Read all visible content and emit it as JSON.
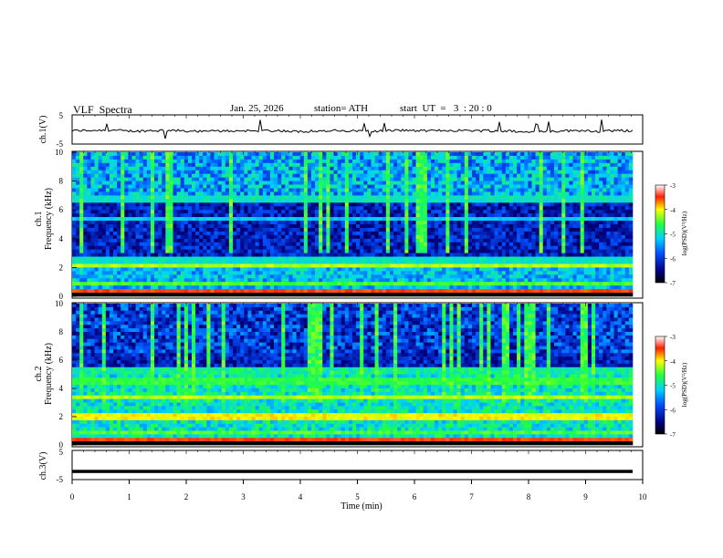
{
  "header": {
    "title": "VLF  Spectra",
    "date": "Jan. 25, 2026",
    "station": "station= ATH",
    "start_ut": "start  UT  =   3  : 20 : 0"
  },
  "chart_data": [
    {
      "type": "line",
      "panel": "ch1-waveform",
      "ylabel": "ch.1(V)",
      "ylim": [
        -5,
        5
      ],
      "yticks": [
        "5",
        "-5"
      ],
      "description_values": "noise trace around -0.5 V with small spikes",
      "baseline": -0.5
    },
    {
      "type": "heatmap",
      "panel": "ch1-spectrogram",
      "ylabel": "ch.1\nFrequency (kHz)",
      "ylabel_lines": [
        "ch.1",
        "Frequency (kHz)"
      ],
      "ylim": [
        0,
        10
      ],
      "yticks": [
        "0",
        "2",
        "4",
        "6",
        "8",
        "10"
      ],
      "xlim": [
        0,
        9.8
      ],
      "colorbar": {
        "label": "log(PSD)(V²/Hz)",
        "range": [
          -7,
          -3
        ],
        "ticks": [
          "-3",
          "-4",
          "-5",
          "-6",
          "-7"
        ]
      },
      "bands_khz": [
        {
          "f": 0.3,
          "level": -3.5
        },
        {
          "f": 0.9,
          "level": -4.5
        },
        {
          "f": 2.15,
          "level": -4.2
        },
        {
          "f": 2.5,
          "level": -5.0
        },
        {
          "f": 5.4,
          "level": -5.2
        },
        {
          "f": 6.8,
          "level": -5.0
        }
      ]
    },
    {
      "type": "heatmap",
      "panel": "ch2-spectrogram",
      "ylabel": "ch.2\nFrequency (kHz)",
      "ylabel_lines": [
        "ch.2",
        "Frequency (kHz)"
      ],
      "ylim": [
        0,
        10
      ],
      "yticks": [
        "0",
        "2",
        "4",
        "6",
        "8",
        "10"
      ],
      "xlim": [
        0,
        9.8
      ],
      "colorbar": {
        "label": "log(PSD)(V²/Hz)",
        "range": [
          -7,
          -3
        ],
        "ticks": [
          "-3",
          "-4",
          "-5",
          "-6",
          "-7"
        ]
      },
      "bands_khz": [
        {
          "f": 0.3,
          "level": -3.5
        },
        {
          "f": 0.9,
          "level": -4.5
        },
        {
          "f": 2.0,
          "level": -4.0
        },
        {
          "f": 3.4,
          "level": -4.2
        },
        {
          "f": 4.5,
          "level": -4.6
        },
        {
          "f": 5.2,
          "level": -5.0
        }
      ]
    },
    {
      "type": "line",
      "panel": "ch3-waveform",
      "ylabel": "ch.3(V)",
      "ylim": [
        -5,
        5
      ],
      "yticks": [
        "5",
        "-5"
      ],
      "baseline": -2.2
    }
  ],
  "xaxis": {
    "label": "Time  (min)",
    "ticks": [
      "0",
      "1",
      "2",
      "3",
      "4",
      "5",
      "6",
      "7",
      "8",
      "9",
      "10"
    ],
    "xlim": [
      0,
      10
    ]
  }
}
